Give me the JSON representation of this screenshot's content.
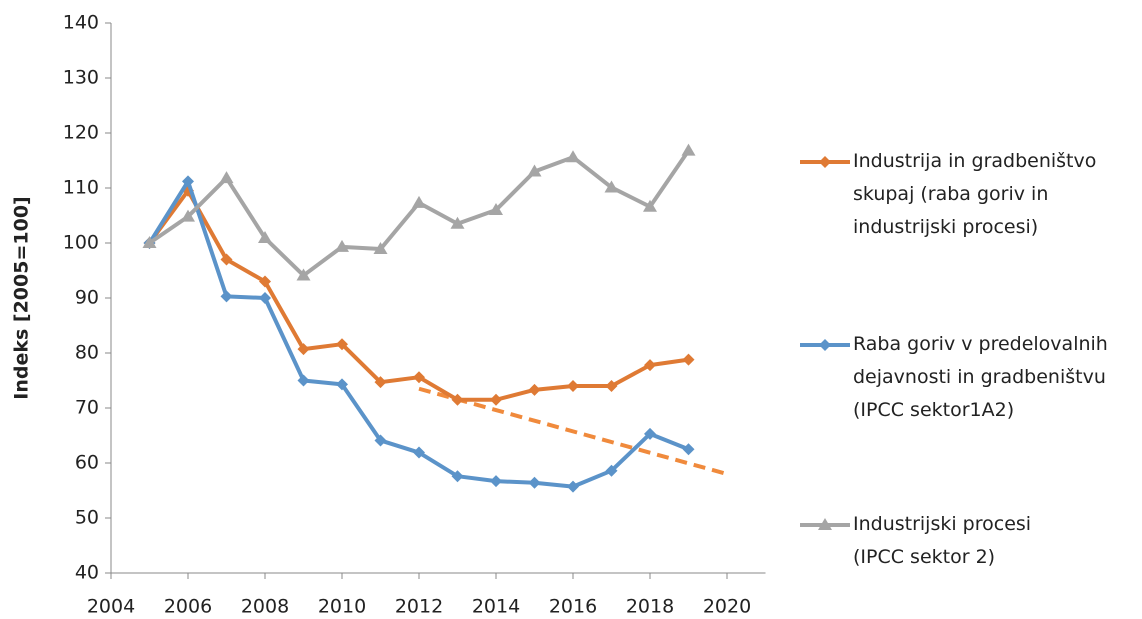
{
  "chart_data": {
    "type": "line",
    "y_label": "Indeks [2005=100]",
    "x": [
      2005,
      2006,
      2007,
      2008,
      2009,
      2010,
      2011,
      2012,
      2013,
      2014,
      2015,
      2016,
      2017,
      2018,
      2019
    ],
    "series": [
      {
        "name": "Industrija in gradbeništvo\nskupaj (raba goriv in\nindustrijski procesi)",
        "color": "#df7a34",
        "marker": "diamond",
        "values": [
          100,
          109.5,
          97,
          93,
          80.7,
          81.6,
          74.7,
          75.6,
          71.5,
          71.5,
          73.3,
          74,
          74,
          77.8,
          78.8
        ]
      },
      {
        "name": "Raba goriv v predelovalnih\ndejavnosti in gradbeništvu\n(IPCC sektor1A2)",
        "color": "#5b93c9",
        "marker": "diamond",
        "values": [
          100,
          111.2,
          90.3,
          90,
          75,
          74.3,
          64.1,
          61.9,
          57.6,
          56.7,
          56.4,
          55.7,
          58.6,
          65.3,
          62.5
        ]
      },
      {
        "name": "Industrijski procesi\n(IPCC sektor 2)",
        "color": "#a5a5a5",
        "marker": "triangle",
        "values": [
          100,
          104.8,
          111.8,
          100.9,
          94.1,
          99.3,
          98.9,
          107.3,
          103.5,
          106,
          113,
          115.6,
          110.1,
          106.6,
          116.8
        ]
      }
    ],
    "trendline": {
      "x": [
        2012,
        2020
      ],
      "values": [
        73.5,
        58
      ],
      "color": "#f08a3c",
      "dashed": true
    },
    "xlim": [
      2004,
      2021
    ],
    "xticks": [
      2004,
      2006,
      2008,
      2010,
      2012,
      2014,
      2016,
      2018,
      2020
    ],
    "ylim": [
      40,
      140
    ],
    "yticks": [
      40,
      50,
      60,
      70,
      80,
      90,
      100,
      110,
      120,
      130,
      140
    ],
    "grid": false,
    "legend": "right"
  }
}
